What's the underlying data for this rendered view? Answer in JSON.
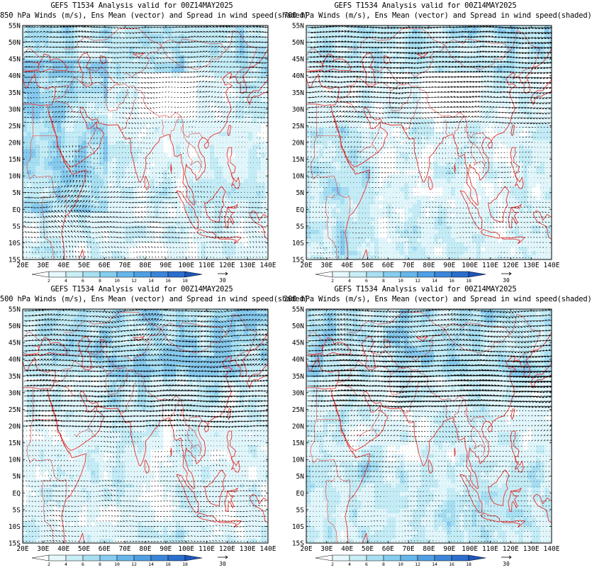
{
  "model_label": "GEFS T1534 Analysis valid for 00Z14MAY2025",
  "panels": [
    {
      "id": "850",
      "title_line1": "GEFS T1534 Analysis valid for 00Z14MAY2025",
      "title_line2": "850 hPa Winds (m/s), Ens Mean (vector) and Spread in wind speed(shaded)"
    },
    {
      "id": "700",
      "title_line1": "GEFS T1534 Analysis valid for 00Z14MAY2025",
      "title_line2": "700 hPa Winds (m/s), Ens Mean (vector) and Spread in wind speed(shaded)"
    },
    {
      "id": "500",
      "title_line1": "GEFS T1534 Analysis valid for 00Z14MAY2025",
      "title_line2": "500 hPa Winds (m/s), Ens Mean (vector) and Spread in wind speed(shaded)"
    },
    {
      "id": "200",
      "title_line1": "GEFS T1534 Analysis valid for 00Z14MAY2025",
      "title_line2": "200 hPa Winds (m/s), Ens Mean (vector) and Spread in wind speed(shaded)"
    }
  ],
  "lat_labels": [
    "55N",
    "50N",
    "45N",
    "40N",
    "35N",
    "30N",
    "25N",
    "20N",
    "15N",
    "10N",
    "5N",
    "EQ",
    "5S",
    "10S",
    "15S"
  ],
  "lon_labels": [
    "20E",
    "30E",
    "40E",
    "50E",
    "60E",
    "70E",
    "80E",
    "90E",
    "100E",
    "110E",
    "120E",
    "130E",
    "140E"
  ],
  "colorbar": {
    "ticks": [
      "2",
      "4",
      "6",
      "8",
      "10",
      "12",
      "14",
      "16",
      "18"
    ],
    "colors": [
      "#ffffff",
      "#e6f8fb",
      "#c8eef6",
      "#a8e0f2",
      "#86cdef",
      "#66b6ea",
      "#4f9fe4",
      "#3c86d9",
      "#2b6ecc",
      "#1d56bd"
    ]
  },
  "reference_vector": {
    "value": "30"
  },
  "colors": {
    "coast": "#e8332f",
    "vectors": "#000000",
    "spread_base": "#c7eef7"
  }
}
